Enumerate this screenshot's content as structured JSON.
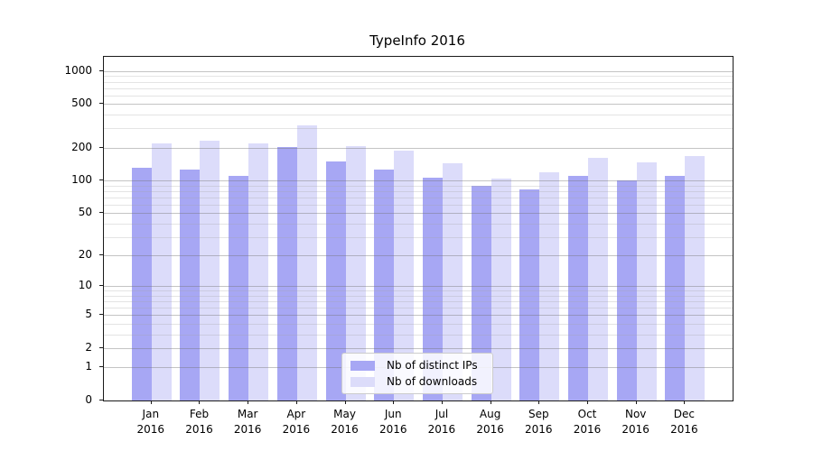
{
  "chart_data": {
    "type": "bar",
    "title": "TypeInfo 2016",
    "categories": [
      "Jan 2016",
      "Feb 2016",
      "Mar 2016",
      "Apr 2016",
      "May 2016",
      "Jun 2016",
      "Jul 2016",
      "Aug 2016",
      "Sep 2016",
      "Oct 2016",
      "Nov 2016",
      "Dec 2016"
    ],
    "x_tick_months": [
      "Jan",
      "Feb",
      "Mar",
      "Apr",
      "May",
      "Jun",
      "Jul",
      "Aug",
      "Sep",
      "Oct",
      "Nov",
      "Dec"
    ],
    "x_tick_year": "2016",
    "series": [
      {
        "name": "Nb of distinct IPs",
        "color": "#a7a7f4",
        "values": [
          130,
          127,
          110,
          201,
          150,
          127,
          107,
          90,
          82,
          110,
          100,
          110
        ]
      },
      {
        "name": "Nb of downloads",
        "color": "#dcdcfa",
        "values": [
          217,
          232,
          217,
          322,
          208,
          189,
          143,
          105,
          120,
          160,
          146,
          166
        ]
      }
    ],
    "yscale": "log10(y+1)",
    "ylim": [
      0,
      1350
    ],
    "y_major_ticks": [
      1000,
      500,
      200,
      100,
      50,
      20,
      10,
      5,
      2,
      1,
      0
    ],
    "y_minor_ticks": [
      900,
      800,
      700,
      600,
      400,
      300,
      90,
      80,
      70,
      60,
      40,
      30,
      9,
      8,
      7,
      6,
      4,
      3
    ],
    "grid": true,
    "legend_position": "lower center"
  },
  "colors": {
    "bar_distinct_ips": "#a7a7f4",
    "bar_downloads": "#dcdcfa",
    "grid_major": "#cfcfcf",
    "grid_minor": "#e9e9e9",
    "spine": "#1a1a1a",
    "background": "#ffffff"
  }
}
